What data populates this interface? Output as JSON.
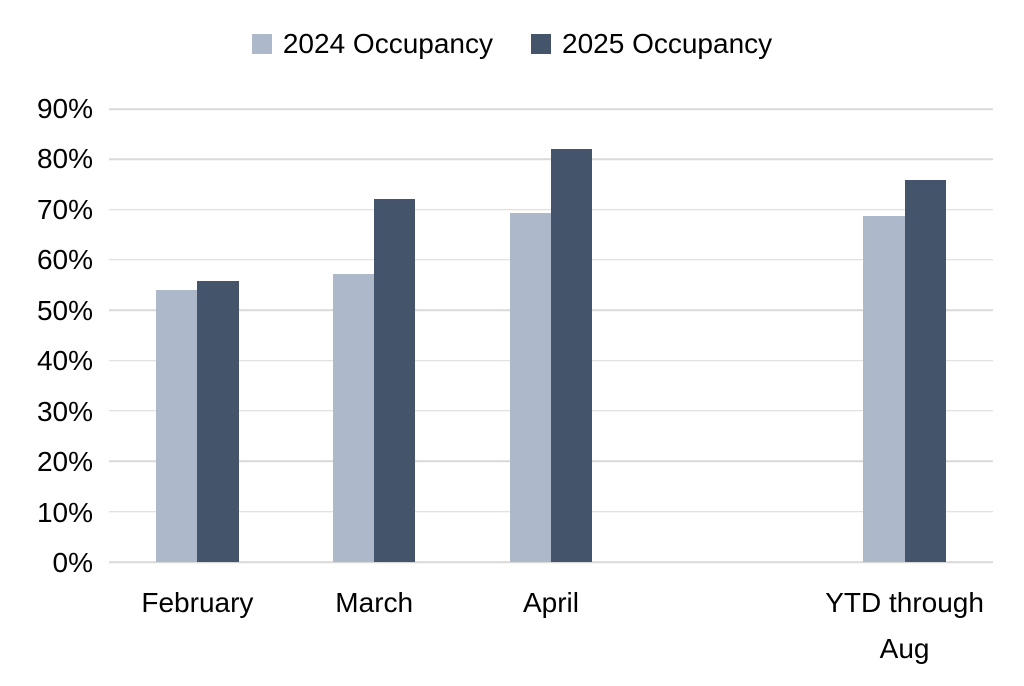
{
  "chart_data": {
    "type": "bar",
    "categories": [
      "February",
      "March",
      "April",
      "",
      "YTD through Aug"
    ],
    "series": [
      {
        "name": "2024 Occupancy",
        "color": "#ADB9CA",
        "values": [
          54.1,
          57.2,
          69.3,
          null,
          68.7
        ]
      },
      {
        "name": "2025 Occupancy",
        "color": "#44546A",
        "values": [
          55.9,
          72.2,
          82.1,
          null,
          75.9
        ]
      }
    ],
    "title": "",
    "xlabel": "",
    "ylabel": "",
    "ylim": [
      0,
      90
    ],
    "ytick_step": 10,
    "yticks": [
      "0%",
      "10%",
      "20%",
      "30%",
      "40%",
      "50%",
      "60%",
      "70%",
      "80%",
      "90%"
    ],
    "grid": "horizontal-only",
    "legend_position": "top-center"
  },
  "colors": {
    "series_2024": "#ADB9CA",
    "series_2025": "#44546A",
    "gridline": "#D9D9D9",
    "text": "#000000",
    "background": "#FFFFFF"
  }
}
